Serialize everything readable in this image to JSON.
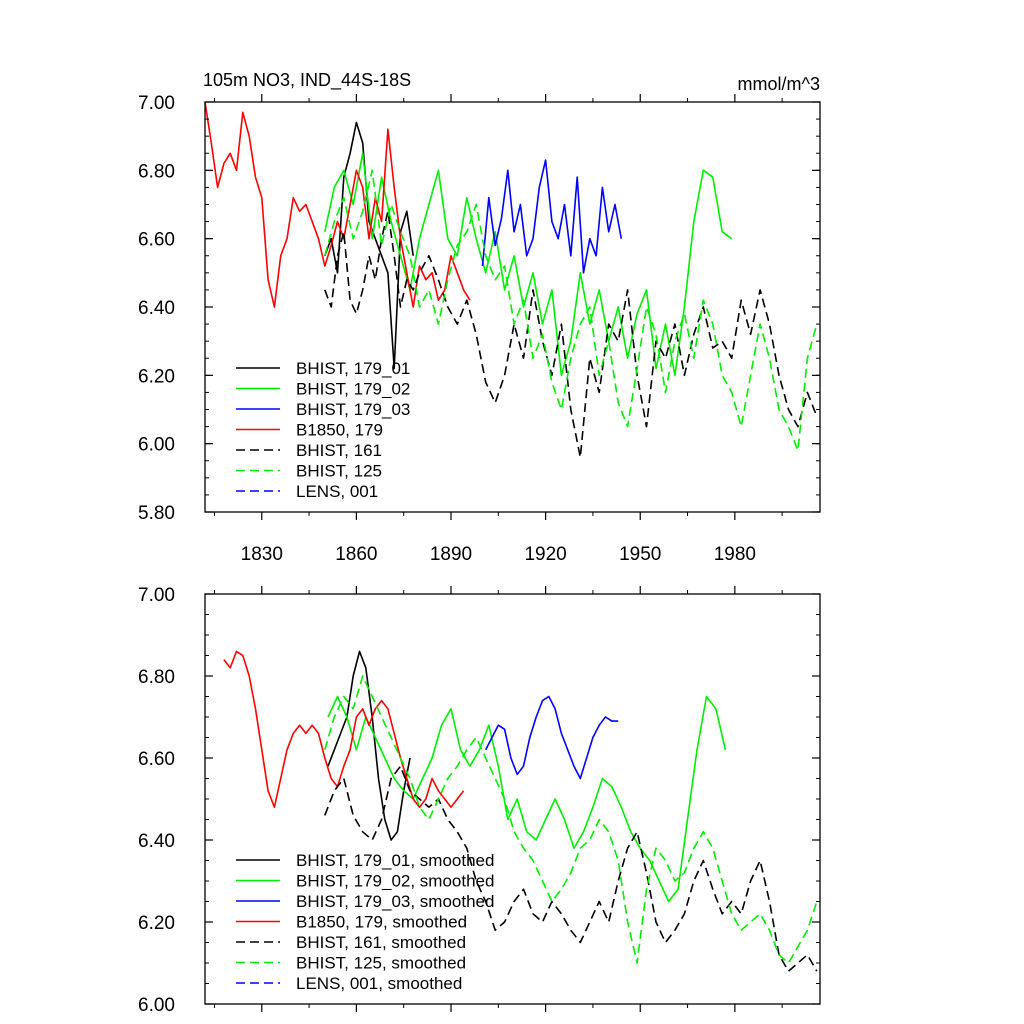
{
  "figure": {
    "title": "105m NO3, IND_44S-18S",
    "units": "mmol/m^3"
  },
  "chart_data": [
    {
      "type": "line",
      "title": "105m NO3, IND_44S-18S",
      "units": "mmol/m^3",
      "xlabel": "",
      "ylabel": "",
      "xlim": [
        1812,
        2007
      ],
      "ylim": [
        5.8,
        7.0
      ],
      "x_ticks": [
        1830,
        1860,
        1890,
        1920,
        1950,
        1980
      ],
      "y_ticks": [
        "5.80",
        "6.00",
        "6.20",
        "6.40",
        "6.60",
        "6.80",
        "7.00"
      ],
      "series": [
        {
          "name": "BHIST, 179_01",
          "color": "#000000",
          "dash": "solid",
          "x": [
            1850,
            1852,
            1854,
            1856,
            1858,
            1860,
            1862,
            1864,
            1866,
            1868,
            1870,
            1872,
            1874,
            1876,
            1878
          ],
          "y": [
            6.55,
            6.6,
            6.5,
            6.78,
            6.85,
            6.94,
            6.88,
            6.65,
            6.6,
            6.55,
            6.5,
            6.22,
            6.62,
            6.68,
            6.55
          ]
        },
        {
          "name": "BHIST, 179_02",
          "color": "#00ee00",
          "dash": "solid",
          "x": [
            1850,
            1853,
            1856,
            1859,
            1862,
            1865,
            1868,
            1871,
            1874,
            1877,
            1880,
            1883,
            1886,
            1889,
            1892,
            1895,
            1898,
            1901,
            1904,
            1907,
            1910,
            1913,
            1916,
            1919,
            1922,
            1925,
            1928,
            1931,
            1934,
            1937,
            1940,
            1943,
            1946,
            1949,
            1952,
            1955,
            1958,
            1961,
            1964,
            1967,
            1970,
            1973,
            1976,
            1979
          ],
          "y": [
            6.62,
            6.75,
            6.8,
            6.7,
            6.85,
            6.6,
            6.78,
            6.65,
            6.55,
            6.45,
            6.6,
            6.7,
            6.8,
            6.6,
            6.55,
            6.72,
            6.6,
            6.5,
            6.62,
            6.45,
            6.55,
            6.4,
            6.5,
            6.35,
            6.45,
            6.2,
            6.3,
            6.5,
            6.35,
            6.45,
            6.3,
            6.4,
            6.25,
            6.38,
            6.45,
            6.22,
            6.35,
            6.2,
            6.4,
            6.65,
            6.8,
            6.78,
            6.62,
            6.6
          ]
        },
        {
          "name": "BHIST, 179_03",
          "color": "#0000ff",
          "dash": "solid",
          "x": [
            1900,
            1902,
            1904,
            1906,
            1908,
            1910,
            1912,
            1914,
            1916,
            1918,
            1920,
            1922,
            1924,
            1926,
            1928,
            1930,
            1932,
            1934,
            1936,
            1938,
            1940,
            1942,
            1944
          ],
          "y": [
            6.52,
            6.72,
            6.58,
            6.66,
            6.8,
            6.62,
            6.7,
            6.55,
            6.6,
            6.75,
            6.83,
            6.65,
            6.6,
            6.7,
            6.55,
            6.78,
            6.5,
            6.6,
            6.55,
            6.75,
            6.62,
            6.7,
            6.6
          ]
        },
        {
          "name": "B1850, 179",
          "color": "#ff0000",
          "dash": "solid",
          "x": [
            1812,
            1814,
            1816,
            1818,
            1820,
            1822,
            1824,
            1826,
            1828,
            1830,
            1832,
            1834,
            1836,
            1838,
            1840,
            1842,
            1844,
            1846,
            1848,
            1850,
            1852,
            1854,
            1856,
            1858,
            1860,
            1862,
            1864,
            1866,
            1868,
            1870,
            1872,
            1874,
            1876,
            1878,
            1880,
            1882,
            1884,
            1886,
            1888,
            1890,
            1892,
            1894,
            1896
          ],
          "y": [
            7.0,
            6.88,
            6.75,
            6.82,
            6.85,
            6.8,
            6.97,
            6.9,
            6.78,
            6.72,
            6.48,
            6.4,
            6.55,
            6.6,
            6.72,
            6.68,
            6.7,
            6.65,
            6.6,
            6.52,
            6.58,
            6.65,
            6.6,
            6.7,
            6.8,
            6.75,
            6.6,
            6.72,
            6.65,
            6.92,
            6.75,
            6.6,
            6.5,
            6.4,
            6.52,
            6.48,
            6.5,
            6.42,
            6.45,
            6.55,
            6.5,
            6.45,
            6.42
          ]
        },
        {
          "name": "BHIST, 161",
          "color": "#000000",
          "dash": "dash",
          "x": [
            1850,
            1852,
            1854,
            1856,
            1858,
            1860,
            1862,
            1864,
            1866,
            1868,
            1870,
            1872,
            1874,
            1876,
            1878,
            1880,
            1883,
            1886,
            1889,
            1892,
            1895,
            1898,
            1901,
            1904,
            1907,
            1910,
            1913,
            1916,
            1919,
            1922,
            1925,
            1928,
            1931,
            1934,
            1937,
            1940,
            1943,
            1946,
            1949,
            1952,
            1955,
            1958,
            1961,
            1964,
            1967,
            1970,
            1973,
            1976,
            1979,
            1982,
            1985,
            1988,
            1991,
            1994,
            1997,
            2000,
            2003,
            2006
          ],
          "y": [
            6.45,
            6.4,
            6.55,
            6.62,
            6.42,
            6.38,
            6.45,
            6.55,
            6.48,
            6.6,
            6.68,
            6.55,
            6.4,
            6.48,
            6.45,
            6.5,
            6.55,
            6.48,
            6.4,
            6.35,
            6.42,
            6.32,
            6.18,
            6.12,
            6.2,
            6.35,
            6.25,
            6.45,
            6.3,
            6.2,
            6.35,
            6.1,
            5.96,
            6.25,
            6.15,
            6.35,
            6.3,
            6.45,
            6.2,
            6.05,
            6.3,
            6.25,
            6.35,
            6.2,
            6.32,
            6.4,
            6.28,
            6.3,
            6.25,
            6.42,
            6.32,
            6.45,
            6.35,
            6.2,
            6.1,
            6.05,
            6.15,
            6.08
          ]
        },
        {
          "name": "BHIST, 125",
          "color": "#00ee00",
          "dash": "dash",
          "x": [
            1850,
            1853,
            1856,
            1859,
            1862,
            1865,
            1868,
            1871,
            1874,
            1877,
            1880,
            1883,
            1886,
            1889,
            1892,
            1895,
            1898,
            1901,
            1904,
            1907,
            1910,
            1913,
            1916,
            1919,
            1922,
            1925,
            1928,
            1931,
            1934,
            1937,
            1940,
            1943,
            1946,
            1949,
            1952,
            1955,
            1958,
            1961,
            1964,
            1967,
            1970,
            1973,
            1976,
            1979,
            1982,
            1985,
            1988,
            1991,
            1994,
            1997,
            2000,
            2003,
            2006
          ],
          "y": [
            6.55,
            6.65,
            6.72,
            6.6,
            6.68,
            6.8,
            6.58,
            6.7,
            6.62,
            6.55,
            6.4,
            6.45,
            6.35,
            6.48,
            6.58,
            6.62,
            6.7,
            6.55,
            6.48,
            6.52,
            6.35,
            6.42,
            6.25,
            6.32,
            6.18,
            6.1,
            6.25,
            6.35,
            6.4,
            6.2,
            6.3,
            6.12,
            6.05,
            6.22,
            6.4,
            6.32,
            6.15,
            6.3,
            6.38,
            6.25,
            6.42,
            6.35,
            6.2,
            6.15,
            6.05,
            6.2,
            6.35,
            6.25,
            6.1,
            6.05,
            5.98,
            6.25,
            6.35
          ]
        },
        {
          "name": "LENS, 001",
          "color": "#0000ff",
          "dash": "dash",
          "x": [],
          "y": []
        }
      ]
    },
    {
      "type": "line",
      "title": "",
      "xlabel": "",
      "ylabel": "",
      "xlim": [
        1812,
        2007
      ],
      "ylim": [
        6.0,
        7.0
      ],
      "x_ticks": [
        1830,
        1860,
        1890,
        1920,
        1950,
        1980
      ],
      "y_ticks": [
        "6.00",
        "6.20",
        "6.40",
        "6.60",
        "6.80",
        "7.00"
      ],
      "series": [
        {
          "name": "BHIST, 179_01, smoothed",
          "color": "#000000",
          "dash": "solid",
          "x": [
            1851,
            1853,
            1855,
            1857,
            1859,
            1861,
            1863,
            1865,
            1867,
            1869,
            1871,
            1873,
            1875,
            1877
          ],
          "y": [
            6.58,
            6.62,
            6.66,
            6.7,
            6.8,
            6.86,
            6.82,
            6.7,
            6.55,
            6.45,
            6.4,
            6.42,
            6.52,
            6.6
          ]
        },
        {
          "name": "BHIST, 179_02, smoothed",
          "color": "#00ee00",
          "dash": "solid",
          "x": [
            1851,
            1854,
            1857,
            1860,
            1863,
            1866,
            1869,
            1872,
            1875,
            1878,
            1881,
            1884,
            1887,
            1890,
            1893,
            1896,
            1899,
            1902,
            1905,
            1908,
            1911,
            1914,
            1917,
            1920,
            1923,
            1926,
            1929,
            1932,
            1935,
            1938,
            1941,
            1944,
            1947,
            1950,
            1953,
            1956,
            1959,
            1962,
            1965,
            1968,
            1971,
            1974,
            1977
          ],
          "y": [
            6.7,
            6.75,
            6.7,
            6.62,
            6.7,
            6.65,
            6.6,
            6.55,
            6.52,
            6.5,
            6.55,
            6.6,
            6.68,
            6.72,
            6.62,
            6.58,
            6.62,
            6.68,
            6.58,
            6.45,
            6.5,
            6.42,
            6.4,
            6.45,
            6.5,
            6.45,
            6.38,
            6.42,
            6.48,
            6.55,
            6.53,
            6.48,
            6.42,
            6.38,
            6.35,
            6.3,
            6.25,
            6.28,
            6.45,
            6.62,
            6.75,
            6.72,
            6.62
          ]
        },
        {
          "name": "BHIST, 179_03, smoothed",
          "color": "#0000ff",
          "dash": "solid",
          "x": [
            1901,
            1903,
            1905,
            1907,
            1909,
            1911,
            1913,
            1915,
            1917,
            1919,
            1921,
            1923,
            1925,
            1927,
            1929,
            1931,
            1933,
            1935,
            1937,
            1939,
            1941,
            1943
          ],
          "y": [
            6.62,
            6.65,
            6.68,
            6.67,
            6.6,
            6.56,
            6.58,
            6.65,
            6.7,
            6.74,
            6.75,
            6.72,
            6.66,
            6.62,
            6.58,
            6.55,
            6.6,
            6.65,
            6.68,
            6.7,
            6.69,
            6.69
          ]
        },
        {
          "name": "B1850, 179, smoothed",
          "color": "#ff0000",
          "dash": "solid",
          "x": [
            1818,
            1820,
            1822,
            1824,
            1826,
            1828,
            1830,
            1832,
            1834,
            1836,
            1838,
            1840,
            1842,
            1844,
            1846,
            1848,
            1850,
            1852,
            1854,
            1856,
            1858,
            1860,
            1862,
            1864,
            1866,
            1868,
            1870,
            1872,
            1874,
            1876,
            1878,
            1880,
            1882,
            1884,
            1886,
            1888,
            1890,
            1892,
            1894
          ],
          "y": [
            6.84,
            6.82,
            6.86,
            6.85,
            6.8,
            6.72,
            6.62,
            6.52,
            6.48,
            6.55,
            6.62,
            6.66,
            6.68,
            6.66,
            6.68,
            6.66,
            6.6,
            6.55,
            6.53,
            6.58,
            6.62,
            6.7,
            6.72,
            6.68,
            6.72,
            6.74,
            6.72,
            6.66,
            6.6,
            6.55,
            6.5,
            6.48,
            6.5,
            6.55,
            6.52,
            6.5,
            6.48,
            6.5,
            6.52
          ]
        },
        {
          "name": "BHIST, 161, smoothed",
          "color": "#000000",
          "dash": "dash",
          "x": [
            1850,
            1853,
            1856,
            1859,
            1862,
            1865,
            1868,
            1871,
            1874,
            1877,
            1880,
            1883,
            1886,
            1889,
            1892,
            1895,
            1898,
            1901,
            1904,
            1907,
            1910,
            1913,
            1916,
            1919,
            1922,
            1925,
            1928,
            1931,
            1934,
            1937,
            1940,
            1943,
            1946,
            1949,
            1952,
            1955,
            1958,
            1961,
            1964,
            1967,
            1970,
            1973,
            1976,
            1979,
            1982,
            1985,
            1988,
            1991,
            1994,
            1997,
            2000,
            2003,
            2006
          ],
          "y": [
            6.46,
            6.52,
            6.55,
            6.46,
            6.42,
            6.4,
            6.45,
            6.55,
            6.58,
            6.52,
            6.5,
            6.48,
            6.5,
            6.45,
            6.42,
            6.38,
            6.3,
            6.25,
            6.18,
            6.2,
            6.25,
            6.28,
            6.22,
            6.2,
            6.25,
            6.22,
            6.18,
            6.15,
            6.2,
            6.25,
            6.2,
            6.3,
            6.38,
            6.42,
            6.32,
            6.2,
            6.15,
            6.18,
            6.22,
            6.3,
            6.35,
            6.28,
            6.22,
            6.25,
            6.22,
            6.3,
            6.35,
            6.25,
            6.12,
            6.08,
            6.1,
            6.12,
            6.08
          ]
        },
        {
          "name": "BHIST, 125, smoothed",
          "color": "#00ee00",
          "dash": "dash",
          "x": [
            1850,
            1853,
            1856,
            1859,
            1862,
            1865,
            1868,
            1871,
            1874,
            1877,
            1880,
            1883,
            1886,
            1889,
            1892,
            1895,
            1898,
            1901,
            1904,
            1907,
            1910,
            1913,
            1916,
            1919,
            1922,
            1925,
            1928,
            1931,
            1934,
            1937,
            1940,
            1943,
            1946,
            1949,
            1952,
            1955,
            1958,
            1961,
            1964,
            1967,
            1970,
            1973,
            1976,
            1979,
            1982,
            1985,
            1988,
            1991,
            1994,
            1997,
            2000,
            2003,
            2006
          ],
          "y": [
            6.62,
            6.7,
            6.75,
            6.72,
            6.8,
            6.75,
            6.7,
            6.65,
            6.6,
            6.55,
            6.48,
            6.45,
            6.5,
            6.55,
            6.58,
            6.62,
            6.65,
            6.6,
            6.55,
            6.5,
            6.42,
            6.38,
            6.35,
            6.3,
            6.25,
            6.28,
            6.32,
            6.38,
            6.4,
            6.45,
            6.42,
            6.35,
            6.2,
            6.1,
            6.28,
            6.38,
            6.35,
            6.3,
            6.32,
            6.38,
            6.42,
            6.38,
            6.3,
            6.22,
            6.18,
            6.2,
            6.22,
            6.18,
            6.12,
            6.1,
            6.14,
            6.18,
            6.25
          ]
        },
        {
          "name": "LENS, 001, smoothed",
          "color": "#0000ff",
          "dash": "dash",
          "x": [],
          "y": []
        }
      ]
    }
  ]
}
